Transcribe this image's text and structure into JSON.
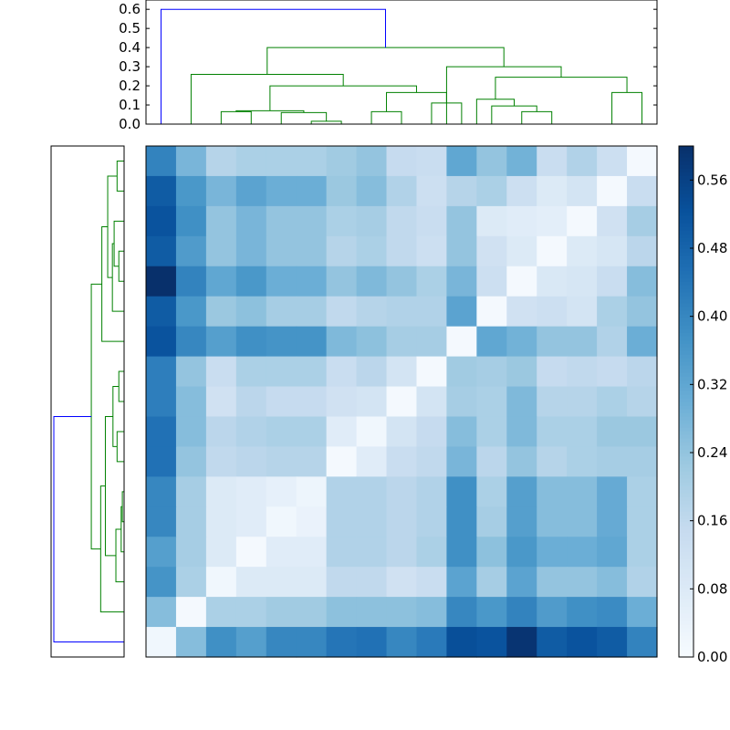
{
  "chart_data": [
    {
      "type": "dendrogram",
      "orientation": "top",
      "yticks": [
        "0.0",
        "0.1",
        "0.2",
        "0.3",
        "0.4",
        "0.5",
        "0.6"
      ],
      "ylim": [
        0,
        0.62
      ],
      "colors": {
        "clusters": "#008000",
        "root": "#0000ff"
      }
    },
    {
      "type": "dendrogram",
      "orientation": "left",
      "colors": {
        "clusters": "#008000",
        "root": "#0000ff"
      }
    },
    {
      "type": "heatmap",
      "n": 17,
      "colormap": "Blues",
      "vmin": 0.0,
      "vmax": 0.6,
      "values": [
        [
          0.41,
          0.28,
          0.18,
          0.2,
          0.2,
          0.2,
          0.22,
          0.24,
          0.15,
          0.14,
          0.32,
          0.24,
          0.29,
          0.14,
          0.19,
          0.13,
          0.01
        ],
        [
          0.5,
          0.36,
          0.28,
          0.33,
          0.3,
          0.3,
          0.23,
          0.26,
          0.19,
          0.13,
          0.18,
          0.2,
          0.13,
          0.08,
          0.11,
          0.01,
          0.14
        ],
        [
          0.52,
          0.38,
          0.24,
          0.28,
          0.24,
          0.24,
          0.2,
          0.21,
          0.16,
          0.14,
          0.24,
          0.08,
          0.07,
          0.06,
          0.01,
          0.12,
          0.21
        ],
        [
          0.5,
          0.35,
          0.24,
          0.28,
          0.24,
          0.24,
          0.18,
          0.2,
          0.16,
          0.13,
          0.24,
          0.12,
          0.08,
          0.01,
          0.08,
          0.1,
          0.17
        ],
        [
          0.6,
          0.41,
          0.32,
          0.36,
          0.3,
          0.3,
          0.24,
          0.27,
          0.24,
          0.2,
          0.28,
          0.13,
          0.01,
          0.09,
          0.1,
          0.14,
          0.26
        ],
        [
          0.5,
          0.36,
          0.23,
          0.25,
          0.21,
          0.21,
          0.16,
          0.18,
          0.19,
          0.19,
          0.33,
          0.01,
          0.12,
          0.13,
          0.11,
          0.2,
          0.24
        ],
        [
          0.52,
          0.4,
          0.34,
          0.38,
          0.37,
          0.37,
          0.27,
          0.25,
          0.21,
          0.21,
          0.01,
          0.32,
          0.29,
          0.24,
          0.24,
          0.19,
          0.3
        ],
        [
          0.42,
          0.24,
          0.14,
          0.2,
          0.2,
          0.2,
          0.14,
          0.17,
          0.11,
          0.01,
          0.22,
          0.21,
          0.23,
          0.15,
          0.16,
          0.15,
          0.17
        ],
        [
          0.42,
          0.26,
          0.12,
          0.17,
          0.15,
          0.15,
          0.12,
          0.11,
          0.01,
          0.11,
          0.21,
          0.2,
          0.27,
          0.18,
          0.18,
          0.2,
          0.18
        ],
        [
          0.45,
          0.26,
          0.17,
          0.19,
          0.2,
          0.2,
          0.07,
          0.02,
          0.11,
          0.15,
          0.26,
          0.2,
          0.27,
          0.2,
          0.2,
          0.23,
          0.23
        ],
        [
          0.45,
          0.24,
          0.16,
          0.17,
          0.18,
          0.18,
          0.01,
          0.07,
          0.14,
          0.16,
          0.28,
          0.17,
          0.24,
          0.18,
          0.2,
          0.21,
          0.21
        ],
        [
          0.4,
          0.21,
          0.08,
          0.07,
          0.05,
          0.03,
          0.19,
          0.19,
          0.17,
          0.19,
          0.38,
          0.2,
          0.34,
          0.26,
          0.26,
          0.31,
          0.2
        ],
        [
          0.4,
          0.21,
          0.08,
          0.07,
          0.02,
          0.04,
          0.19,
          0.19,
          0.17,
          0.19,
          0.38,
          0.21,
          0.34,
          0.26,
          0.26,
          0.31,
          0.2
        ],
        [
          0.34,
          0.21,
          0.08,
          0.01,
          0.07,
          0.07,
          0.19,
          0.19,
          0.17,
          0.2,
          0.38,
          0.25,
          0.36,
          0.3,
          0.3,
          0.32,
          0.2
        ],
        [
          0.37,
          0.2,
          0.02,
          0.08,
          0.08,
          0.08,
          0.16,
          0.16,
          0.12,
          0.14,
          0.33,
          0.21,
          0.33,
          0.24,
          0.24,
          0.26,
          0.19
        ],
        [
          0.26,
          0.01,
          0.2,
          0.2,
          0.22,
          0.22,
          0.25,
          0.25,
          0.25,
          0.26,
          0.4,
          0.36,
          0.41,
          0.35,
          0.38,
          0.39,
          0.3
        ],
        [
          0.02,
          0.26,
          0.38,
          0.34,
          0.4,
          0.4,
          0.44,
          0.45,
          0.4,
          0.43,
          0.53,
          0.52,
          0.59,
          0.5,
          0.52,
          0.5,
          0.41
        ]
      ]
    },
    {
      "type": "colorbar",
      "ticks": [
        "0.00",
        "0.08",
        "0.16",
        "0.24",
        "0.32",
        "0.40",
        "0.48",
        "0.56"
      ],
      "tick_values": [
        0.0,
        0.08,
        0.16,
        0.24,
        0.32,
        0.4,
        0.48,
        0.56
      ],
      "vmin": 0.0,
      "vmax": 0.6
    }
  ]
}
